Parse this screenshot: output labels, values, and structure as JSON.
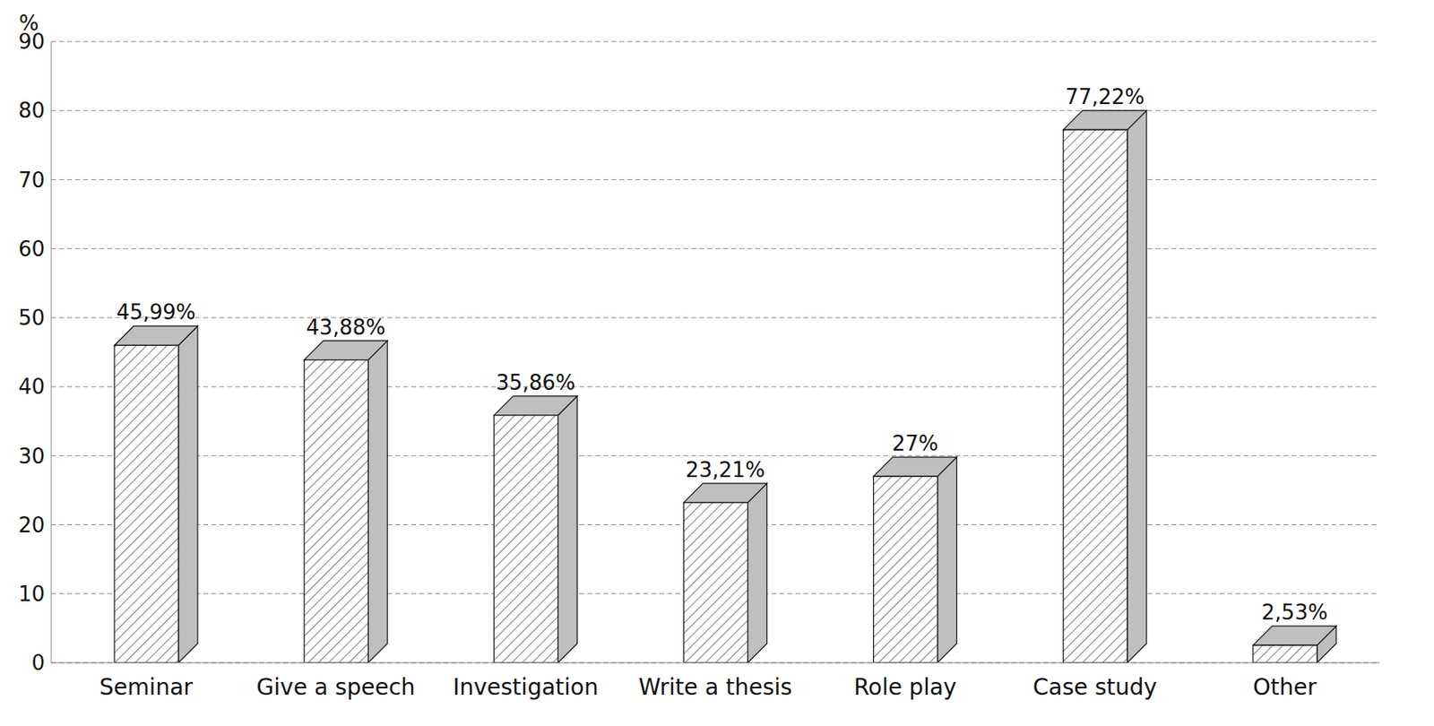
{
  "chart_data": {
    "type": "bar",
    "y_label": "%",
    "categories": [
      "Seminar",
      "Give a speech",
      "Investigation",
      "Write a thesis",
      "Role play",
      "Case study",
      "Other"
    ],
    "values": [
      45.99,
      43.88,
      35.86,
      23.21,
      27,
      77.22,
      2.53
    ],
    "value_labels": [
      "45,99%",
      "43,88%",
      "35,86%",
      "23,21%",
      "27%",
      "77,22%",
      "2,53%"
    ],
    "color": "#bfbfbf",
    "ylim": [
      0,
      90
    ],
    "yticks": [
      0,
      10,
      20,
      30,
      40,
      50,
      60,
      70,
      80,
      90
    ],
    "grid": true,
    "data_labels": true
  }
}
